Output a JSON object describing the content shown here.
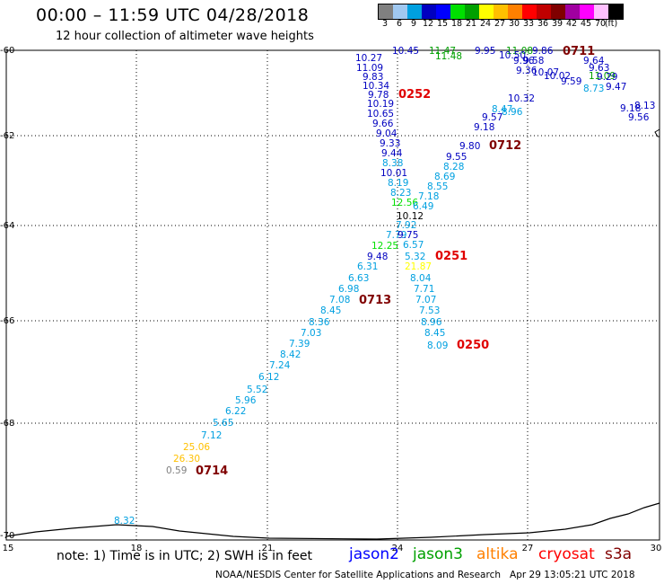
{
  "header": {
    "title": "00:00 – 11:59 UTC 04/28/2018",
    "subtitle": "12 hour collection of altimeter wave heights"
  },
  "legend": {
    "colors": [
      "#808080",
      "#a0c8f0",
      "#00a0e0",
      "#0000c0",
      "#0000ff",
      "#00e000",
      "#00a000",
      "#ffff00",
      "#ffc000",
      "#ff8000",
      "#ff0000",
      "#c00000",
      "#800000",
      "#a000a0",
      "#ff00ff",
      "#ffc0ff",
      "#000000"
    ],
    "labels": [
      "3",
      "6",
      "9",
      "12",
      "15",
      "18",
      "21",
      "24",
      "27",
      "30",
      "33",
      "36",
      "39",
      "42",
      "45",
      "70",
      "(ft)"
    ]
  },
  "map": {
    "y_ticks": [
      "-60",
      "-62",
      "-64",
      "-66",
      "-68",
      "-70"
    ],
    "x_ticks": [
      "15",
      "18",
      "21",
      "24",
      "27",
      "30"
    ],
    "observations": [
      {
        "t": "10.45",
        "c": "#0000c0"
      },
      {
        "t": "11.47",
        "c": "#00a000"
      },
      {
        "t": "11.48",
        "c": "#00a000"
      },
      {
        "t": "9.95",
        "c": "#0000c0"
      },
      {
        "t": "11.08",
        "c": "#00a000"
      },
      {
        "t": "9.86",
        "c": "#0000c0"
      },
      {
        "t": "10.27",
        "c": "#0000c0"
      },
      {
        "t": "11.09",
        "c": "#0000c0"
      },
      {
        "t": "9.83",
        "c": "#0000c0"
      },
      {
        "t": "10.34",
        "c": "#0000c0"
      },
      {
        "t": "9.78",
        "c": "#0000c0"
      },
      {
        "t": "10.19",
        "c": "#0000c0"
      },
      {
        "t": "10.65",
        "c": "#0000c0"
      },
      {
        "t": "9.66",
        "c": "#0000c0"
      },
      {
        "t": "9.04",
        "c": "#0000c0"
      },
      {
        "t": "9.33",
        "c": "#0000c0"
      },
      {
        "t": "9.44",
        "c": "#0000c0"
      },
      {
        "t": "8.38",
        "c": "#00a0e0"
      },
      {
        "t": "10.01",
        "c": "#0000c0"
      },
      {
        "t": "8.19",
        "c": "#00a0e0"
      },
      {
        "t": "8.23",
        "c": "#00a0e0"
      },
      {
        "t": "12.56",
        "c": "#00e000"
      },
      {
        "t": "10.12",
        "c": "#000000"
      },
      {
        "t": "7.92",
        "c": "#00a0e0"
      },
      {
        "t": "7.79",
        "c": "#00a0e0"
      },
      {
        "t": "9.75",
        "c": "#0000c0"
      },
      {
        "t": "12.25",
        "c": "#00e000"
      },
      {
        "t": "6.57",
        "c": "#00a0e0"
      },
      {
        "t": "9.48",
        "c": "#0000c0"
      },
      {
        "t": "5.32",
        "c": "#00a0e0"
      },
      {
        "t": "6.31",
        "c": "#00a0e0"
      },
      {
        "t": "21.87",
        "c": "#ffff00"
      },
      {
        "t": "6.63",
        "c": "#00a0e0"
      },
      {
        "t": "8.04",
        "c": "#00a0e0"
      },
      {
        "t": "6.98",
        "c": "#00a0e0"
      },
      {
        "t": "7.71",
        "c": "#00a0e0"
      },
      {
        "t": "7.08",
        "c": "#00a0e0"
      },
      {
        "t": "7.07",
        "c": "#00a0e0"
      },
      {
        "t": "8.45",
        "c": "#00a0e0"
      },
      {
        "t": "7.53",
        "c": "#00a0e0"
      },
      {
        "t": "8.36",
        "c": "#00a0e0"
      },
      {
        "t": "8.96",
        "c": "#00a0e0"
      },
      {
        "t": "7.03",
        "c": "#00a0e0"
      },
      {
        "t": "8.45",
        "c": "#00a0e0"
      },
      {
        "t": "7.39",
        "c": "#00a0e0"
      },
      {
        "t": "8.09",
        "c": "#00a0e0"
      },
      {
        "t": "8.42",
        "c": "#00a0e0"
      },
      {
        "t": "7.24",
        "c": "#00a0e0"
      },
      {
        "t": "6.12",
        "c": "#00a0e0"
      },
      {
        "t": "5.52",
        "c": "#00a0e0"
      },
      {
        "t": "5.96",
        "c": "#00a0e0"
      },
      {
        "t": "6.22",
        "c": "#00a0e0"
      },
      {
        "t": "5.65",
        "c": "#00a0e0"
      },
      {
        "t": "7.12",
        "c": "#00a0e0"
      },
      {
        "t": "25.06",
        "c": "#ffc000"
      },
      {
        "t": "26.30",
        "c": "#ffc000"
      },
      {
        "t": "0.59",
        "c": "#808080"
      },
      {
        "t": "8.32",
        "c": "#00a0e0"
      },
      {
        "t": "10.50",
        "c": "#0000c0"
      },
      {
        "t": "9.96",
        "c": "#0000c0"
      },
      {
        "t": "9.58",
        "c": "#0000c0"
      },
      {
        "t": "9.64",
        "c": "#0000c0"
      },
      {
        "t": "9.63",
        "c": "#0000c0"
      },
      {
        "t": "9.36",
        "c": "#0000c0"
      },
      {
        "t": "10.07",
        "c": "#0000c0"
      },
      {
        "t": "10.02",
        "c": "#0000c0"
      },
      {
        "t": "11.09",
        "c": "#00a000"
      },
      {
        "t": "9.29",
        "c": "#0000c0"
      },
      {
        "t": "9.59",
        "c": "#0000c0"
      },
      {
        "t": "9.47",
        "c": "#0000c0"
      },
      {
        "t": "8.73",
        "c": "#00a0e0"
      },
      {
        "t": "10.32",
        "c": "#0000c0"
      },
      {
        "t": "8.96",
        "c": "#00a0e0"
      },
      {
        "t": "9.57",
        "c": "#0000c0"
      },
      {
        "t": "8.47",
        "c": "#00a0e0"
      },
      {
        "t": "9.18",
        "c": "#0000c0"
      },
      {
        "t": "9.80",
        "c": "#0000c0"
      },
      {
        "t": "9.55",
        "c": "#0000c0"
      },
      {
        "t": "8.28",
        "c": "#00a0e0"
      },
      {
        "t": "8.69",
        "c": "#00a0e0"
      },
      {
        "t": "8.55",
        "c": "#00a0e0"
      },
      {
        "t": "7.18",
        "c": "#00a0e0"
      },
      {
        "t": "6.49",
        "c": "#00a0e0"
      },
      {
        "t": "9.56",
        "c": "#0000c0"
      },
      {
        "t": "9.18",
        "c": "#0000c0"
      },
      {
        "t": "8.13",
        "c": "#0000c0"
      }
    ],
    "track_labels": [
      {
        "t": "0711",
        "c": "#800000"
      },
      {
        "t": "0252",
        "c": "#e00000"
      },
      {
        "t": "0712",
        "c": "#800000"
      },
      {
        "t": "0251",
        "c": "#e00000"
      },
      {
        "t": "0713",
        "c": "#800000"
      },
      {
        "t": "0250",
        "c": "#e00000"
      },
      {
        "t": "0714",
        "c": "#800000"
      }
    ]
  },
  "footer": {
    "note": "note: 1) Time is in UTC; 2) SWH is in feet",
    "satellites": [
      {
        "name": "jason2",
        "color": "#0000ff"
      },
      {
        "name": "jason3",
        "color": "#00a000"
      },
      {
        "name": "altika",
        "color": "#ff8000"
      },
      {
        "name": "cryosat",
        "color": "#ff0000"
      },
      {
        "name": "s3a",
        "color": "#800000"
      }
    ],
    "credit": "NOAA/NESDIS Center for Satellite Applications and Research   Apr 29 13:05:21 UTC 2018"
  }
}
